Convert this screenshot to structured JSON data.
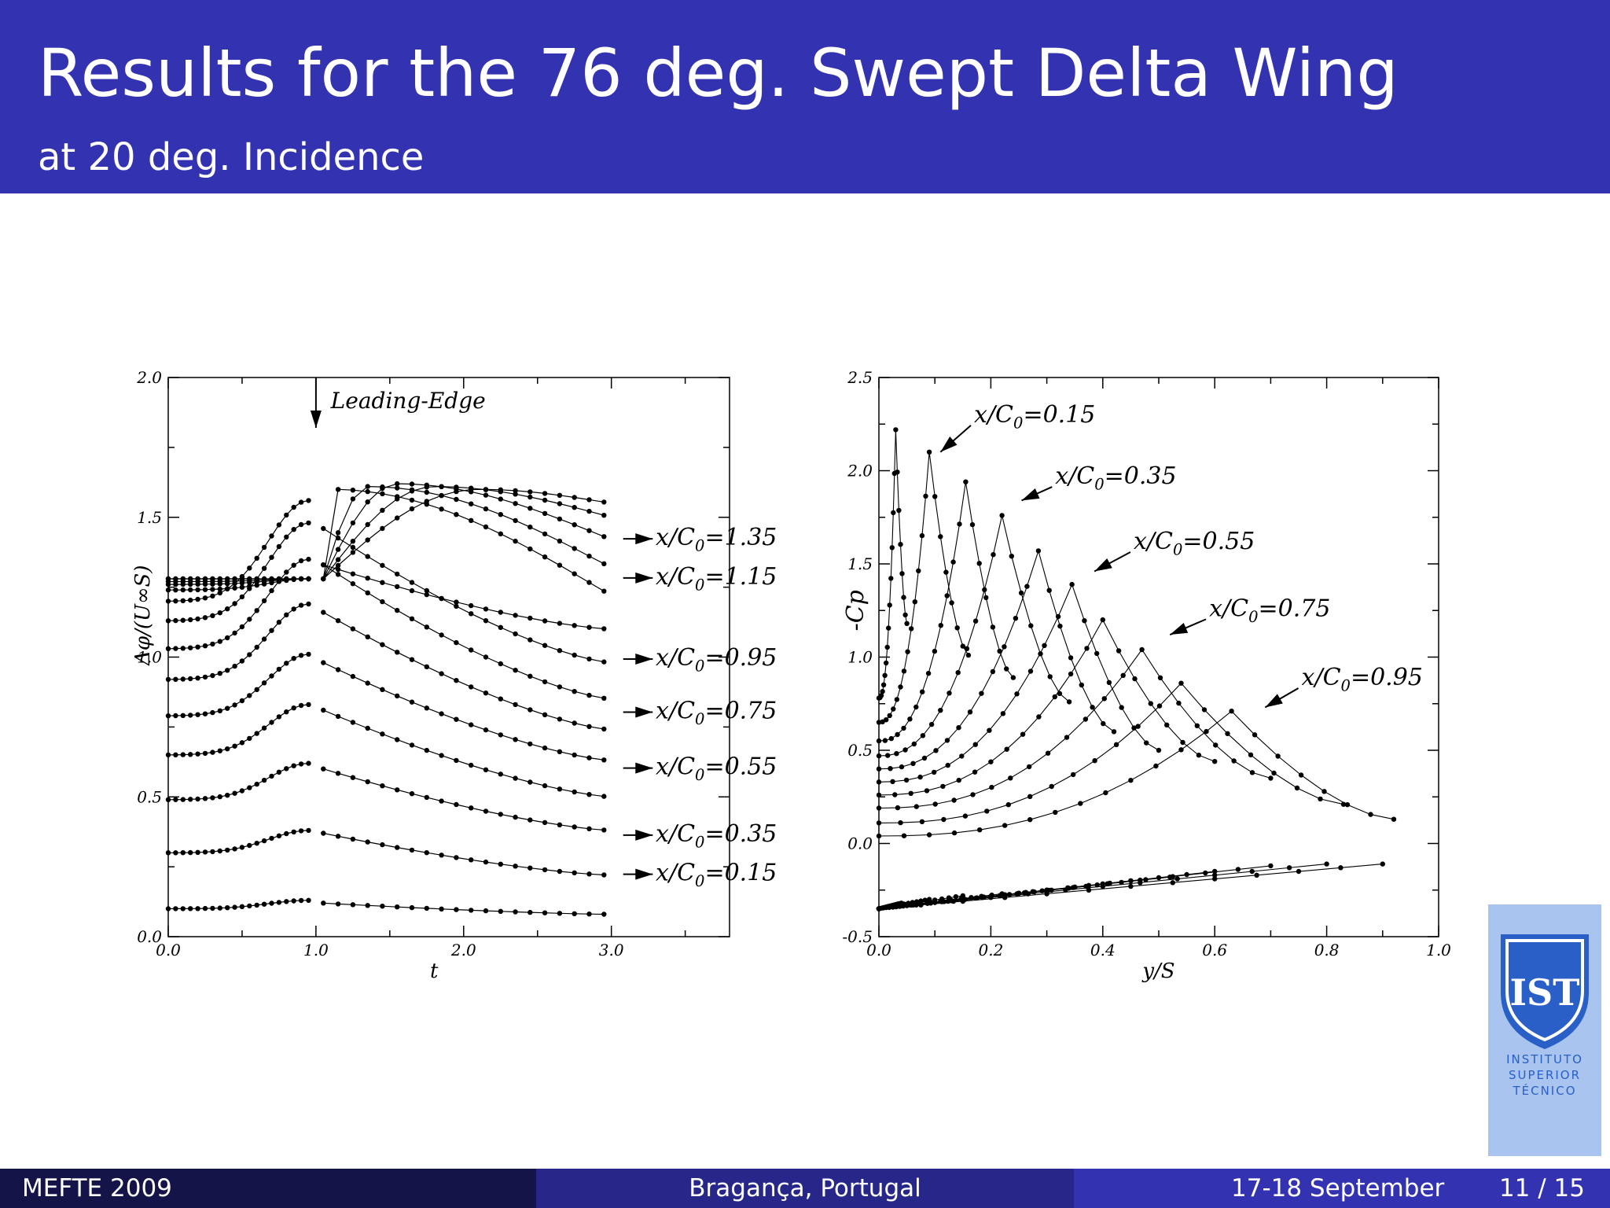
{
  "slide": {
    "title": "Results for the 76 deg. Swept Delta Wing",
    "subtitle": "at 20 deg. Incidence"
  },
  "footer": {
    "left": "MEFTE 2009",
    "center": "Bragança, Portugal",
    "date": "17-18 September",
    "page": "11 / 15"
  },
  "logo": {
    "monogram": "IST",
    "lines": [
      "INSTITUTO",
      "SUPERIOR",
      "TÉCNICO"
    ]
  },
  "colors": {
    "header": "#3333b2",
    "footer_dark": "#141448",
    "footer_mid": "#27278a",
    "logo_bg": "#a8c4ef",
    "logo_blue": "#2a5fc8"
  },
  "chart_data": [
    {
      "type": "line",
      "xlabel": "t",
      "ylabel": "Δφ/(U∞S)",
      "xlim": [
        0.0,
        3.8
      ],
      "ylim": [
        0.0,
        2.0
      ],
      "xticks": [
        "0.0",
        "1.0",
        "2.0",
        "3.0"
      ],
      "yticks": [
        "0.0",
        "0.5",
        "1.0",
        "1.5",
        "2.0"
      ],
      "annotation": "Leading-Edge",
      "annotation_x": 1.0,
      "series": [
        {
          "name": "x/C0=0.15",
          "base": 0.1,
          "peak": 0.13,
          "t_peak": 0.95,
          "start_after": 0.12,
          "end": 0.08,
          "label_y": 0.24
        },
        {
          "name": "",
          "base": 0.3,
          "peak": 0.38,
          "t_peak": 0.95,
          "start_after": 0.37,
          "end": 0.22,
          "label_y": null
        },
        {
          "name": "x/C0=0.35",
          "base": 0.49,
          "peak": 0.62,
          "t_peak": 0.95,
          "start_after": 0.6,
          "end": 0.38,
          "label_y": 0.38
        },
        {
          "name": "",
          "base": 0.65,
          "peak": 0.83,
          "t_peak": 0.95,
          "start_after": 0.81,
          "end": 0.5,
          "label_y": null
        },
        {
          "name": "x/C0=0.55",
          "base": 0.79,
          "peak": 1.01,
          "t_peak": 0.95,
          "start_after": 0.98,
          "end": 0.63,
          "label_y": 0.62
        },
        {
          "name": "",
          "base": 0.92,
          "peak": 1.19,
          "t_peak": 0.95,
          "start_after": 1.16,
          "end": 0.74,
          "label_y": null
        },
        {
          "name": "x/C0=0.75",
          "base": 1.03,
          "peak": 1.35,
          "t_peak": 0.95,
          "start_after": 1.33,
          "end": 0.85,
          "label_y": 0.82
        },
        {
          "name": "",
          "base": 1.13,
          "peak": 1.48,
          "t_peak": 0.95,
          "start_after": 1.46,
          "end": 0.98,
          "label_y": null
        },
        {
          "name": "x/C0=0.95",
          "base": 1.2,
          "peak": 1.56,
          "t_peak": 0.95,
          "start_after": 1.33,
          "end": 1.1,
          "label_y": 1.01
        },
        {
          "name": "",
          "base": 1.24,
          "peak": 1.6,
          "t_peak": 1.1,
          "start_after": 1.28,
          "end": 1.22,
          "label_y": null
        },
        {
          "name": "x/C0=1.15",
          "base": 1.26,
          "peak": 1.61,
          "t_peak": 1.35,
          "start_after": 1.28,
          "end": 1.32,
          "label_y": 1.3
        },
        {
          "name": "",
          "base": 1.27,
          "peak": 1.62,
          "t_peak": 1.55,
          "start_after": 1.28,
          "end": 1.42,
          "label_y": null
        },
        {
          "name": "x/C0=1.35",
          "base": 1.28,
          "peak": 1.61,
          "t_peak": 1.8,
          "start_after": 1.28,
          "end": 1.5,
          "label_y": 1.44
        },
        {
          "name": "",
          "base": 1.28,
          "peak": 1.6,
          "t_peak": 2.1,
          "start_after": 1.28,
          "end": 1.55,
          "label_y": null
        }
      ]
    },
    {
      "type": "line",
      "xlabel": "y/S",
      "ylabel": "-Cp",
      "xlim": [
        0.0,
        1.0
      ],
      "ylim": [
        -0.5,
        2.5
      ],
      "xticks": [
        "0.0",
        "0.2",
        "0.4",
        "0.6",
        "0.8",
        "1.0"
      ],
      "yticks": [
        "-0.5",
        "0.0",
        "0.5",
        "1.0",
        "1.5",
        "2.0",
        "2.5"
      ],
      "series": [
        {
          "name": "x/C0=0.15",
          "peak_y": 0.03,
          "peak_cp": 2.22,
          "base_cp": 0.78,
          "end_y": 0.05,
          "end_cp": 1.18,
          "label": {
            "x": 0.17,
            "y": 2.26,
            "arrow_to": [
              0.11,
              2.1
            ]
          }
        },
        {
          "name": "",
          "peak_y": 0.09,
          "peak_cp": 2.1,
          "base_cp": 0.65,
          "end_y": 0.16,
          "end_cp": 1.01,
          "label": null
        },
        {
          "name": "x/C0=0.35",
          "peak_y": 0.155,
          "peak_cp": 1.94,
          "base_cp": 0.55,
          "end_y": 0.24,
          "end_cp": 0.89,
          "label": {
            "x": 0.315,
            "y": 1.93,
            "arrow_to": [
              0.255,
              1.84
            ]
          }
        },
        {
          "name": "",
          "peak_y": 0.22,
          "peak_cp": 1.76,
          "base_cp": 0.47,
          "end_y": 0.34,
          "end_cp": 0.76,
          "label": null
        },
        {
          "name": "x/C0=0.55",
          "peak_y": 0.285,
          "peak_cp": 1.57,
          "base_cp": 0.4,
          "end_y": 0.42,
          "end_cp": 0.6,
          "label": {
            "x": 0.455,
            "y": 1.58,
            "arrow_to": [
              0.385,
              1.46
            ]
          }
        },
        {
          "name": "",
          "peak_y": 0.345,
          "peak_cp": 1.39,
          "base_cp": 0.33,
          "end_y": 0.5,
          "end_cp": 0.5,
          "label": null
        },
        {
          "name": "x/C0=0.75",
          "peak_y": 0.4,
          "peak_cp": 1.2,
          "base_cp": 0.26,
          "end_y": 0.6,
          "end_cp": 0.44,
          "label": {
            "x": 0.59,
            "y": 1.22,
            "arrow_to": [
              0.52,
              1.12
            ]
          }
        },
        {
          "name": "",
          "peak_y": 0.47,
          "peak_cp": 1.04,
          "base_cp": 0.19,
          "end_y": 0.7,
          "end_cp": 0.35,
          "label": null
        },
        {
          "name": "",
          "peak_y": 0.54,
          "peak_cp": 0.86,
          "base_cp": 0.11,
          "end_y": 0.83,
          "end_cp": 0.21,
          "label": null
        },
        {
          "name": "x/C0=0.95",
          "peak_y": 0.63,
          "peak_cp": 0.71,
          "base_cp": 0.04,
          "end_y": 0.92,
          "end_cp": 0.13,
          "label": {
            "x": 0.755,
            "y": 0.85,
            "arrow_to": [
              0.69,
              0.73
            ]
          }
        }
      ],
      "lower_surface": {
        "origin_cp": -0.35,
        "ends": [
          [
            0.9,
            -0.11
          ],
          [
            0.8,
            -0.11
          ],
          [
            0.7,
            -0.12
          ],
          [
            0.6,
            -0.15
          ],
          [
            0.52,
            -0.18
          ],
          [
            0.45,
            -0.2
          ],
          [
            0.37,
            -0.23
          ],
          [
            0.3,
            -0.25
          ],
          [
            0.22,
            -0.27
          ],
          [
            0.15,
            -0.28
          ],
          [
            0.09,
            -0.3
          ],
          [
            0.04,
            -0.32
          ]
        ]
      }
    }
  ]
}
